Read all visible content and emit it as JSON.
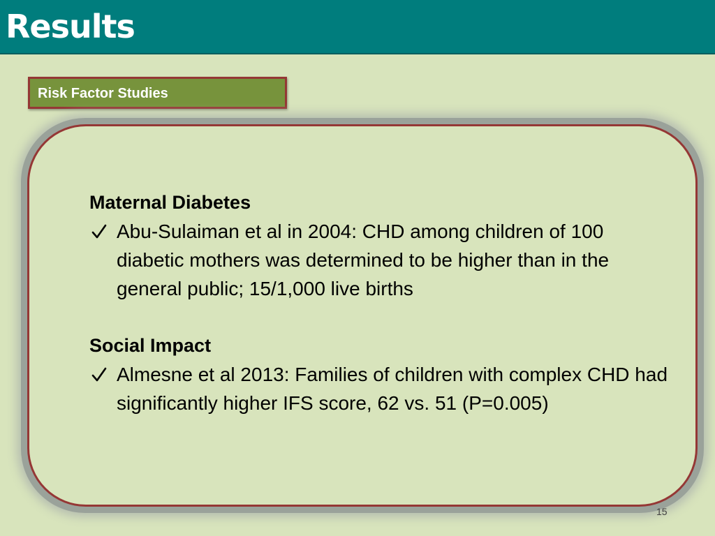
{
  "slide": {
    "title": "Results",
    "section_tag": "Risk Factor Studies",
    "page_number": "15"
  },
  "content": {
    "blocks": [
      {
        "heading": "Maternal Diabetes",
        "bullet_icon": "checkmark-icon",
        "bullet": "Abu-Sulaiman et al in 2004: CHD among children of 100 diabetic mothers was determined to be higher than in the general public; 15/1,000 live births"
      },
      {
        "heading": "Social Impact",
        "bullet_icon": "checkmark-icon",
        "bullet": "Almesne et al 2013: Families of children with complex CHD had significantly higher IFS score, 62 vs. 51 (P=0.005)"
      }
    ]
  },
  "colors": {
    "header": "#007d7d",
    "background": "#d8e4bc",
    "tag_fill": "#77933c",
    "accent_border": "#953735"
  }
}
